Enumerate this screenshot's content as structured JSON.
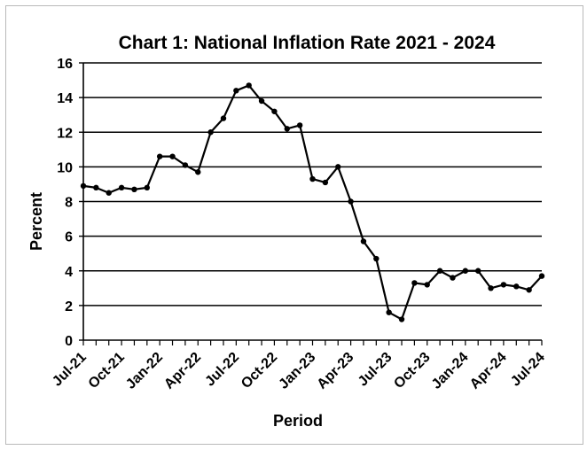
{
  "chart_data": {
    "type": "line",
    "title": "Chart 1: National Inflation Rate 2021 - 2024",
    "xlabel": "Period",
    "ylabel": "Percent",
    "ylim": [
      0,
      16
    ],
    "y_ticks": [
      "0",
      "2",
      "4",
      "6",
      "8",
      "10",
      "12",
      "14",
      "16"
    ],
    "x_tick_labels": [
      "Jul-21",
      "Oct-21",
      "Jan-22",
      "Apr-22",
      "Jul-22",
      "Oct-22",
      "Jan-23",
      "Apr-23",
      "Jul-23",
      "Oct-23",
      "Jan-24",
      "Apr-24",
      "Jul-24"
    ],
    "grid": "horizontal",
    "x": [
      "Jul-21",
      "Aug-21",
      "Sep-21",
      "Oct-21",
      "Nov-21",
      "Dec-21",
      "Jan-22",
      "Feb-22",
      "Mar-22",
      "Apr-22",
      "May-22",
      "Jun-22",
      "Jul-22",
      "Aug-22",
      "Sep-22",
      "Oct-22",
      "Nov-22",
      "Dec-22",
      "Jan-23",
      "Feb-23",
      "Mar-23",
      "Apr-23",
      "May-23",
      "Jun-23",
      "Jul-23",
      "Aug-23",
      "Sep-23",
      "Oct-23",
      "Nov-23",
      "Dec-23",
      "Jan-24",
      "Feb-24",
      "Mar-24",
      "Apr-24",
      "May-24",
      "Jun-24",
      "Jul-24"
    ],
    "series": [
      {
        "values": [
          8.9,
          8.8,
          8.5,
          8.8,
          8.7,
          8.8,
          10.6,
          10.6,
          10.1,
          9.7,
          12.0,
          12.8,
          14.4,
          14.7,
          13.8,
          13.2,
          12.2,
          12.4,
          9.3,
          9.1,
          10.0,
          8.0,
          5.7,
          4.7,
          1.6,
          1.2,
          3.3,
          3.2,
          4.0,
          3.6,
          4.0,
          4.0,
          3.0,
          3.2,
          3.1,
          2.9,
          3.7
        ],
        "color": "#000000"
      }
    ]
  }
}
